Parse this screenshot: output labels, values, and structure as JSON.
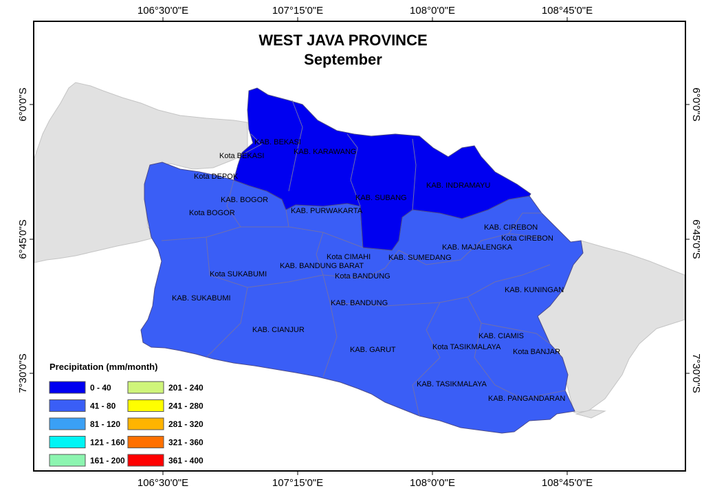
{
  "title": "WEST JAVA PROVINCE",
  "subtitle": "September",
  "axes": {
    "lon_ticks": [
      "106°30'0\"E",
      "107°15'0\"E",
      "108°0'0\"E",
      "108°45'0\"E"
    ],
    "lat_ticks": [
      "6°0'0\"S",
      "6°45'0\"S",
      "7°30'0\"S"
    ]
  },
  "colors": {
    "frame": "#000000",
    "background": "#ffffff",
    "neighbor_land": "#e1e1e1",
    "region_0_40": "#0000f0",
    "region_41_80": "#3a5ef6",
    "boundary": "#6f6fae"
  },
  "legend": {
    "title": "Precipitation (mm/month)",
    "items": [
      {
        "label": "0 - 40",
        "color": "#0000f0"
      },
      {
        "label": "41 - 80",
        "color": "#3a5ef6"
      },
      {
        "label": "81 - 120",
        "color": "#3aa0f5"
      },
      {
        "label": "121 - 160",
        "color": "#00f5f5"
      },
      {
        "label": "161 - 200",
        "color": "#8cf5b0"
      },
      {
        "label": "201 - 240",
        "color": "#cff57a"
      },
      {
        "label": "241 - 280",
        "color": "#ffff00"
      },
      {
        "label": "281 - 320",
        "color": "#ffb400"
      },
      {
        "label": "321 - 360",
        "color": "#ff7000"
      },
      {
        "label": "361 - 400",
        "color": "#ff0000"
      }
    ]
  },
  "regions": {
    "kab_bekasi": "KAB. BEKASI",
    "kota_bekasi": "Kota BEKASI",
    "kab_karawang": "KAB. KARAWANG",
    "kota_depok": "Kota DEPOK",
    "kab_bogor": "KAB. BOGOR",
    "kota_bogor": "Kota BOGOR",
    "kab_purwakarta": "KAB. PURWAKARTA",
    "kab_subang": "KAB. SUBANG",
    "kab_indramayu": "KAB. INDRAMAYU",
    "kab_cirebon": "KAB. CIREBON",
    "kota_cirebon": "Kota CIREBON",
    "kab_majalengka": "KAB. MAJALENGKA",
    "kota_cimahi": "Kota CIMAHI",
    "kab_sumedang": "KAB. SUMEDANG",
    "kab_bandung_barat": "KAB. BANDUNG BARAT",
    "kota_sukabumi": "Kota SUKABUMI",
    "kota_bandung": "Kota BANDUNG",
    "kab_kuningan": "KAB. KUNINGAN",
    "kab_sukabumi": "KAB. SUKABUMI",
    "kab_bandung": "KAB. BANDUNG",
    "kab_cianjur": "KAB. CIANJUR",
    "kab_ciamis": "KAB. CIAMIS",
    "kab_garut": "KAB. GARUT",
    "kota_tasikmalaya": "Kota TASIKMALAYA",
    "kota_banjar": "Kota BANJAR",
    "kab_tasikmalaya": "KAB. TASIKMALAYA",
    "kab_pangandaran": "KAB. PANGANDARAN"
  },
  "region_classes": {
    "north": "0 - 40",
    "south": "41 - 80"
  }
}
